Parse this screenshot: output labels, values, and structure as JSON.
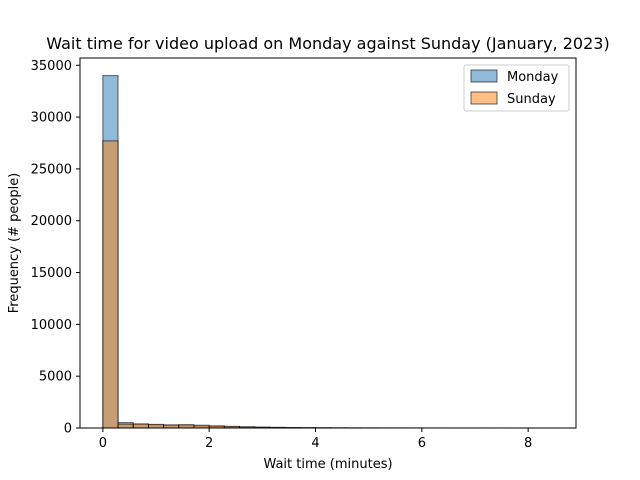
{
  "chart_data": {
    "type": "histogram",
    "title": "Wait time for video upload on Monday against Sunday (January, 2023)",
    "xlabel": "Wait time (minutes)",
    "ylabel": "Frequency (# people)",
    "xlim": [
      -0.43,
      8.9
    ],
    "ylim": [
      0,
      35700
    ],
    "xticks": [
      0,
      2,
      4,
      6,
      8
    ],
    "yticks": [
      0,
      5000,
      10000,
      15000,
      20000,
      25000,
      30000,
      35000
    ],
    "bin_width": 0.2857,
    "bin_start": 0,
    "grid": false,
    "legend_placement": "upper right",
    "series": [
      {
        "name": "Monday",
        "color": "#1f77b4",
        "alpha": 0.5,
        "values": [
          34000,
          520,
          350,
          310,
          270,
          230,
          200,
          160,
          120,
          90,
          70,
          55,
          40,
          30,
          22,
          16,
          12,
          9,
          7,
          5,
          4,
          3,
          3,
          2,
          2,
          1,
          1,
          1,
          1,
          1
        ]
      },
      {
        "name": "Sunday",
        "color": "#ff7f0e",
        "alpha": 0.5,
        "values": [
          27700,
          370,
          400,
          350,
          300,
          330,
          270,
          210,
          160,
          120,
          85,
          60,
          42,
          30,
          20,
          14,
          10,
          7,
          5,
          4,
          3,
          2,
          2,
          1,
          1,
          1,
          1,
          0,
          0,
          0
        ]
      }
    ]
  }
}
